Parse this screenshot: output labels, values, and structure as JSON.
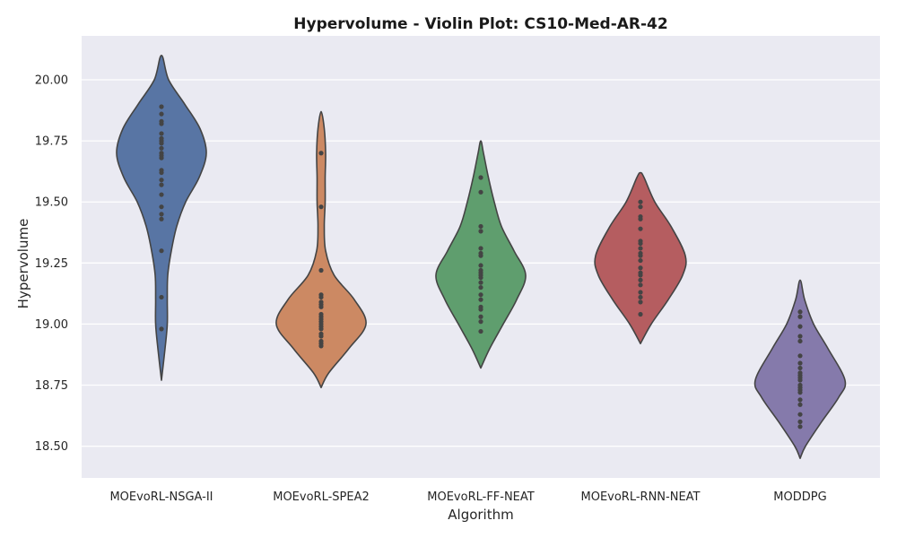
{
  "chart_data": {
    "type": "violin",
    "title": "Hypervolume - Violin Plot: CS10-Med-AR-42",
    "xlabel": "Algorithm",
    "ylabel": "Hypervolume",
    "ylim": [
      18.37,
      20.18
    ],
    "yticks": [
      "18.50",
      "18.75",
      "19.00",
      "19.25",
      "19.50",
      "19.75",
      "20.00"
    ],
    "grid": true,
    "categories": [
      "MOEvoRL-NSGA-II",
      "MOEvoRL-SPEA2",
      "MOEvoRL-FF-NEAT",
      "MOEvoRL-RNN-NEAT",
      "MODDPG"
    ],
    "colors": [
      "#5875a4",
      "#cc8963",
      "#5f9e6e",
      "#b55d60",
      "#857aab"
    ],
    "series": [
      {
        "values": [
          19.89,
          19.86,
          19.83,
          19.82,
          19.78,
          19.76,
          19.75,
          19.74,
          19.72,
          19.7,
          19.69,
          19.68,
          19.63,
          19.62,
          19.59,
          19.57,
          19.53,
          19.48,
          19.45,
          19.43,
          19.3,
          19.11,
          18.98
        ],
        "density": [
          [
            18.77,
            0.0
          ],
          [
            18.9,
            0.08
          ],
          [
            19.0,
            0.13
          ],
          [
            19.1,
            0.13
          ],
          [
            19.2,
            0.14
          ],
          [
            19.3,
            0.22
          ],
          [
            19.4,
            0.34
          ],
          [
            19.5,
            0.54
          ],
          [
            19.6,
            0.84
          ],
          [
            19.7,
            1.0
          ],
          [
            19.8,
            0.86
          ],
          [
            19.9,
            0.52
          ],
          [
            20.0,
            0.16
          ],
          [
            20.1,
            0.0
          ]
        ]
      },
      {
        "values": [
          19.7,
          19.48,
          19.22,
          19.12,
          19.11,
          19.09,
          19.08,
          19.07,
          19.04,
          19.03,
          19.02,
          19.01,
          19.0,
          18.99,
          18.98,
          18.96,
          18.95,
          18.93,
          18.92,
          18.91
        ],
        "density": [
          [
            18.74,
            0.0
          ],
          [
            18.8,
            0.17
          ],
          [
            18.9,
            0.62
          ],
          [
            19.0,
            1.0
          ],
          [
            19.1,
            0.74
          ],
          [
            19.2,
            0.29
          ],
          [
            19.3,
            0.1
          ],
          [
            19.4,
            0.07
          ],
          [
            19.5,
            0.09
          ],
          [
            19.6,
            0.09
          ],
          [
            19.7,
            0.1
          ],
          [
            19.8,
            0.07
          ],
          [
            19.87,
            0.0
          ]
        ]
      },
      {
        "values": [
          19.6,
          19.54,
          19.4,
          19.38,
          19.31,
          19.29,
          19.28,
          19.24,
          19.22,
          19.21,
          19.2,
          19.19,
          19.17,
          19.15,
          19.12,
          19.1,
          19.07,
          19.06,
          19.03,
          19.01,
          18.97
        ],
        "density": [
          [
            18.82,
            0.0
          ],
          [
            18.9,
            0.2
          ],
          [
            19.0,
            0.5
          ],
          [
            19.1,
            0.8
          ],
          [
            19.2,
            1.0
          ],
          [
            19.3,
            0.74
          ],
          [
            19.4,
            0.46
          ],
          [
            19.5,
            0.3
          ],
          [
            19.6,
            0.17
          ],
          [
            19.7,
            0.06
          ],
          [
            19.75,
            0.0
          ]
        ]
      },
      {
        "values": [
          19.5,
          19.48,
          19.44,
          19.43,
          19.39,
          19.34,
          19.33,
          19.31,
          19.29,
          19.28,
          19.26,
          19.23,
          19.21,
          19.2,
          19.18,
          19.16,
          19.13,
          19.11,
          19.09,
          19.04
        ],
        "density": [
          [
            18.92,
            0.0
          ],
          [
            19.0,
            0.24
          ],
          [
            19.1,
            0.62
          ],
          [
            19.2,
            0.94
          ],
          [
            19.28,
            1.0
          ],
          [
            19.4,
            0.68
          ],
          [
            19.5,
            0.32
          ],
          [
            19.6,
            0.08
          ],
          [
            19.62,
            0.0
          ]
        ]
      },
      {
        "values": [
          19.05,
          19.03,
          18.99,
          18.95,
          18.93,
          18.87,
          18.84,
          18.82,
          18.8,
          18.79,
          18.78,
          18.77,
          18.75,
          18.74,
          18.73,
          18.72,
          18.69,
          18.67,
          18.63,
          18.6,
          18.58
        ],
        "density": [
          [
            18.45,
            0.0
          ],
          [
            18.5,
            0.12
          ],
          [
            18.6,
            0.48
          ],
          [
            18.7,
            0.86
          ],
          [
            18.77,
            1.0
          ],
          [
            18.9,
            0.62
          ],
          [
            19.0,
            0.3
          ],
          [
            19.1,
            0.1
          ],
          [
            19.18,
            0.0
          ]
        ]
      }
    ]
  }
}
